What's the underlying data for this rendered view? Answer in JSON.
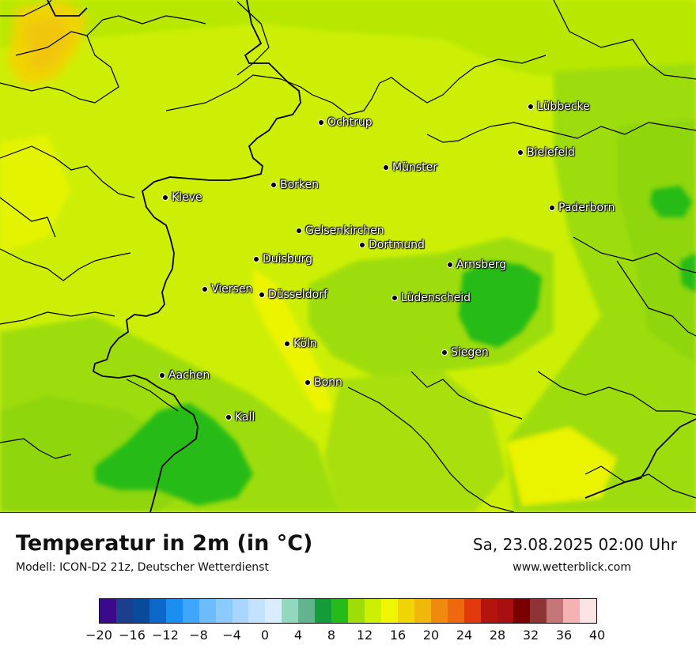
{
  "title": "Temperatur in 2m (in °C)",
  "model": "Modell: ICON-D2 21z, Deutscher Wetterdienst",
  "datetime": "Sa, 23.08.2025 02:00 Uhr",
  "website": "www.wetterblick.com",
  "cities": [
    {
      "name": "Ochtrup"
    },
    {
      "name": "Lübbecke"
    },
    {
      "name": "Bielefeld"
    },
    {
      "name": "Münster"
    },
    {
      "name": "Borken"
    },
    {
      "name": "Kleve"
    },
    {
      "name": "Paderborn"
    },
    {
      "name": "Gelsenkirchen"
    },
    {
      "name": "Dortmund"
    },
    {
      "name": "Duisburg"
    },
    {
      "name": "Arnsberg"
    },
    {
      "name": "Viersen"
    },
    {
      "name": "Düsseldorf"
    },
    {
      "name": "Lüdenscheid"
    },
    {
      "name": "Köln"
    },
    {
      "name": "Siegen"
    },
    {
      "name": "Aachen"
    },
    {
      "name": "Bonn"
    },
    {
      "name": "Kall"
    }
  ],
  "colorbar": {
    "ticks": [
      "−20",
      "−16",
      "−12",
      "−8",
      "−4",
      "0",
      "4",
      "8",
      "12",
      "16",
      "20",
      "24",
      "28",
      "32",
      "36",
      "40"
    ],
    "colors": [
      "#3a0a8a",
      "#1b3f8c",
      "#0a4a9a",
      "#0b67c8",
      "#1b8ef2",
      "#3ea6fb",
      "#6cbcfc",
      "#8ccafd",
      "#a9d6fe",
      "#c3e2fe",
      "#d9edfe",
      "#92d8bf",
      "#62b48e",
      "#149c3a",
      "#25bb18",
      "#9edd07",
      "#cdef06",
      "#f0f504",
      "#f0d406",
      "#f0b80a",
      "#f08a0f",
      "#ee6810",
      "#e23a0c",
      "#b4140e",
      "#a80f10",
      "#7a0000",
      "#8e3434",
      "#c47575",
      "#f4b2b2",
      "#fde4e4"
    ]
  }
}
